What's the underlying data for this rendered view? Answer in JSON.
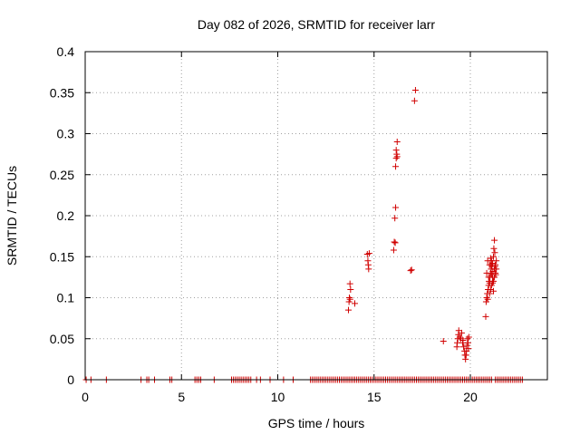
{
  "chart_data": {
    "type": "scatter",
    "title": "Day 082 of 2026, SRMTID for receiver larr",
    "xlabel": "GPS time / hours",
    "ylabel": "SRMTID / TECUs",
    "xlim": [
      0,
      24
    ],
    "ylim": [
      0,
      0.4
    ],
    "x_ticks": [
      0,
      5,
      10,
      15,
      20
    ],
    "y_ticks": [
      0,
      0.05,
      0.1,
      0.15,
      0.2,
      0.25,
      0.3,
      0.35,
      0.4
    ],
    "x_tick_labels": [
      "0",
      "5",
      "10",
      "15",
      "20"
    ],
    "y_tick_labels": [
      "0",
      "0.05",
      "0.1",
      "0.15",
      "0.2",
      "0.25",
      "0.3",
      "0.35",
      "0.4"
    ],
    "grid": true,
    "marker": "+",
    "series": [
      {
        "name": "SRMTID",
        "color": "#d00000",
        "points": [
          [
            0.05,
            0
          ],
          [
            0.3,
            0
          ],
          [
            1.1,
            0
          ],
          [
            2.9,
            0
          ],
          [
            3.2,
            0
          ],
          [
            3.3,
            0
          ],
          [
            3.6,
            0
          ],
          [
            4.4,
            0
          ],
          [
            4.5,
            0
          ],
          [
            5.7,
            0
          ],
          [
            5.8,
            0
          ],
          [
            5.9,
            0
          ],
          [
            6.0,
            0
          ],
          [
            6.7,
            0
          ],
          [
            7.6,
            0
          ],
          [
            7.7,
            0
          ],
          [
            7.8,
            0
          ],
          [
            7.9,
            0
          ],
          [
            8.0,
            0
          ],
          [
            8.1,
            0
          ],
          [
            8.2,
            0
          ],
          [
            8.3,
            0
          ],
          [
            8.4,
            0
          ],
          [
            8.5,
            0
          ],
          [
            8.6,
            0
          ],
          [
            8.9,
            0
          ],
          [
            9.1,
            0
          ],
          [
            9.6,
            0
          ],
          [
            10.3,
            0
          ],
          [
            10.8,
            0
          ],
          [
            11.7,
            0
          ],
          [
            11.8,
            0
          ],
          [
            11.9,
            0
          ],
          [
            12.0,
            0
          ],
          [
            12.1,
            0
          ],
          [
            12.2,
            0
          ],
          [
            12.3,
            0
          ],
          [
            12.4,
            0
          ],
          [
            12.5,
            0
          ],
          [
            12.6,
            0
          ],
          [
            12.7,
            0
          ],
          [
            12.8,
            0
          ],
          [
            12.9,
            0
          ],
          [
            13.0,
            0
          ],
          [
            13.1,
            0
          ],
          [
            13.2,
            0
          ],
          [
            13.3,
            0
          ],
          [
            13.4,
            0
          ],
          [
            13.5,
            0
          ],
          [
            13.6,
            0
          ],
          [
            13.7,
            0
          ],
          [
            13.8,
            0
          ],
          [
            13.9,
            0
          ],
          [
            14.0,
            0
          ],
          [
            14.1,
            0
          ],
          [
            14.2,
            0
          ],
          [
            14.3,
            0
          ],
          [
            14.4,
            0
          ],
          [
            14.5,
            0
          ],
          [
            14.6,
            0
          ],
          [
            14.7,
            0
          ],
          [
            14.8,
            0
          ],
          [
            14.9,
            0
          ],
          [
            15.0,
            0
          ],
          [
            15.1,
            0
          ],
          [
            15.2,
            0
          ],
          [
            15.3,
            0
          ],
          [
            15.4,
            0
          ],
          [
            15.5,
            0
          ],
          [
            15.6,
            0
          ],
          [
            15.7,
            0
          ],
          [
            15.8,
            0
          ],
          [
            15.9,
            0
          ],
          [
            16.0,
            0
          ],
          [
            16.1,
            0
          ],
          [
            16.2,
            0
          ],
          [
            16.3,
            0
          ],
          [
            16.4,
            0
          ],
          [
            16.5,
            0
          ],
          [
            16.6,
            0
          ],
          [
            16.7,
            0
          ],
          [
            16.8,
            0
          ],
          [
            16.9,
            0
          ],
          [
            17.0,
            0
          ],
          [
            17.1,
            0
          ],
          [
            17.2,
            0
          ],
          [
            17.3,
            0
          ],
          [
            17.4,
            0
          ],
          [
            17.5,
            0
          ],
          [
            17.6,
            0
          ],
          [
            17.7,
            0
          ],
          [
            17.8,
            0
          ],
          [
            17.9,
            0
          ],
          [
            18.0,
            0
          ],
          [
            18.1,
            0
          ],
          [
            18.2,
            0
          ],
          [
            18.3,
            0
          ],
          [
            18.4,
            0
          ],
          [
            18.5,
            0
          ],
          [
            18.6,
            0
          ],
          [
            18.7,
            0
          ],
          [
            18.8,
            0
          ],
          [
            18.9,
            0
          ],
          [
            19.0,
            0
          ],
          [
            19.1,
            0
          ],
          [
            19.2,
            0
          ],
          [
            19.3,
            0
          ],
          [
            19.4,
            0
          ],
          [
            19.5,
            0
          ],
          [
            19.6,
            0
          ],
          [
            19.7,
            0
          ],
          [
            19.8,
            0
          ],
          [
            19.9,
            0
          ],
          [
            20.0,
            0
          ],
          [
            20.1,
            0
          ],
          [
            20.2,
            0
          ],
          [
            20.3,
            0
          ],
          [
            20.4,
            0
          ],
          [
            20.5,
            0
          ],
          [
            20.6,
            0
          ],
          [
            20.7,
            0
          ],
          [
            20.8,
            0
          ],
          [
            20.9,
            0
          ],
          [
            21.0,
            0
          ],
          [
            21.1,
            0
          ],
          [
            21.3,
            0
          ],
          [
            21.4,
            0
          ],
          [
            21.5,
            0
          ],
          [
            21.6,
            0
          ],
          [
            21.7,
            0
          ],
          [
            21.8,
            0
          ],
          [
            21.9,
            0
          ],
          [
            22.0,
            0
          ],
          [
            22.1,
            0
          ],
          [
            22.2,
            0
          ],
          [
            22.3,
            0
          ],
          [
            22.4,
            0
          ],
          [
            22.5,
            0
          ],
          [
            22.6,
            0
          ],
          [
            22.7,
            0
          ],
          [
            13.67,
            0.085
          ],
          [
            13.7,
            0.095
          ],
          [
            13.72,
            0.1
          ],
          [
            13.75,
            0.098
          ],
          [
            13.78,
            0.11
          ],
          [
            13.75,
            0.117
          ],
          [
            14.0,
            0.093
          ],
          [
            14.65,
            0.153
          ],
          [
            14.68,
            0.145
          ],
          [
            14.7,
            0.14
          ],
          [
            14.72,
            0.135
          ],
          [
            14.75,
            0.154
          ],
          [
            16.02,
            0.158
          ],
          [
            16.05,
            0.168
          ],
          [
            16.08,
            0.197
          ],
          [
            16.1,
            0.167
          ],
          [
            16.12,
            0.21
          ],
          [
            16.12,
            0.26
          ],
          [
            16.15,
            0.27
          ],
          [
            16.15,
            0.28
          ],
          [
            16.18,
            0.275
          ],
          [
            16.2,
            0.272
          ],
          [
            16.2,
            0.29
          ],
          [
            16.9,
            0.133
          ],
          [
            16.95,
            0.134
          ],
          [
            17.1,
            0.34
          ],
          [
            17.15,
            0.353
          ],
          [
            18.6,
            0.047
          ],
          [
            19.3,
            0.04
          ],
          [
            19.32,
            0.045
          ],
          [
            19.35,
            0.05
          ],
          [
            19.38,
            0.055
          ],
          [
            19.4,
            0.06
          ],
          [
            19.45,
            0.052
          ],
          [
            19.5,
            0.05
          ],
          [
            19.55,
            0.057
          ],
          [
            19.6,
            0.045
          ],
          [
            19.62,
            0.048
          ],
          [
            19.65,
            0.04
          ],
          [
            19.7,
            0.035
          ],
          [
            19.72,
            0.03
          ],
          [
            19.75,
            0.025
          ],
          [
            19.78,
            0.03
          ],
          [
            19.8,
            0.035
          ],
          [
            19.82,
            0.042
          ],
          [
            19.85,
            0.05
          ],
          [
            19.88,
            0.045
          ],
          [
            19.9,
            0.038
          ],
          [
            19.92,
            0.052
          ],
          [
            20.8,
            0.077
          ],
          [
            20.82,
            0.095
          ],
          [
            20.85,
            0.1
          ],
          [
            20.88,
            0.105
          ],
          [
            20.9,
            0.098
          ],
          [
            20.92,
            0.11
          ],
          [
            20.95,
            0.115
          ],
          [
            20.97,
            0.12
          ],
          [
            21.0,
            0.118
          ],
          [
            21.02,
            0.125
          ],
          [
            21.05,
            0.13
          ],
          [
            21.07,
            0.14
          ],
          [
            21.08,
            0.135
          ],
          [
            21.1,
            0.145
          ],
          [
            21.12,
            0.138
          ],
          [
            21.15,
            0.125
          ],
          [
            21.17,
            0.132
          ],
          [
            21.2,
            0.15
          ],
          [
            21.22,
            0.16
          ],
          [
            21.25,
            0.17
          ],
          [
            21.27,
            0.155
          ],
          [
            21.3,
            0.14
          ],
          [
            21.32,
            0.128
          ],
          [
            21.35,
            0.135
          ],
          [
            20.9,
            0.145
          ],
          [
            21.0,
            0.105
          ],
          [
            21.05,
            0.11
          ],
          [
            21.1,
            0.128
          ],
          [
            21.15,
            0.142
          ],
          [
            21.2,
            0.12
          ],
          [
            21.25,
            0.135
          ],
          [
            21.3,
            0.13
          ],
          [
            21.35,
            0.145
          ],
          [
            21.0,
            0.14
          ],
          [
            21.1,
            0.115
          ],
          [
            21.2,
            0.108
          ],
          [
            20.85,
            0.13
          ],
          [
            20.95,
            0.125
          ],
          [
            21.05,
            0.148
          ],
          [
            21.15,
            0.118
          ],
          [
            21.25,
            0.125
          ],
          [
            21.28,
            0.138
          ]
        ]
      }
    ]
  }
}
